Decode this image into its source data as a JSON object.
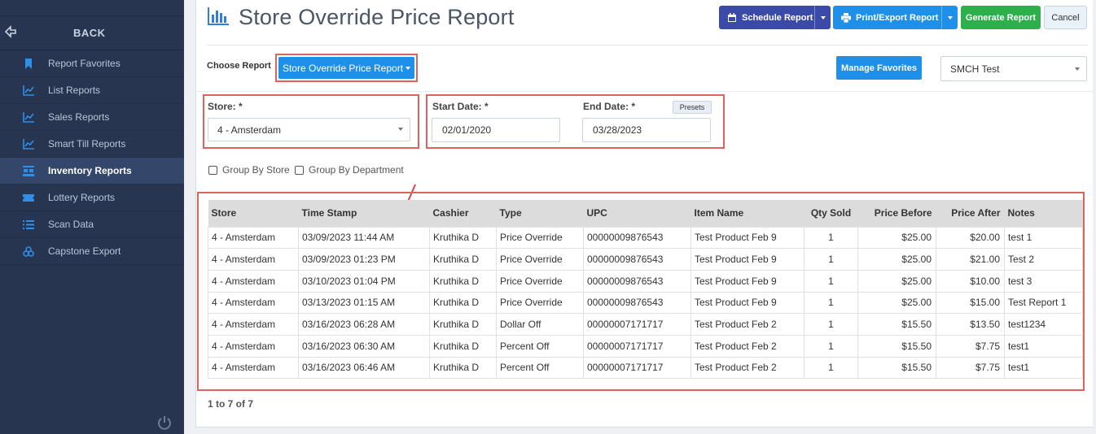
{
  "sidebar": {
    "back_label": "BACK",
    "items": [
      {
        "label": "Report Favorites",
        "icon": "bookmark-icon",
        "active": false
      },
      {
        "label": "List Reports",
        "icon": "line-chart-icon",
        "active": false
      },
      {
        "label": "Sales Reports",
        "icon": "line-chart-icon",
        "active": false
      },
      {
        "label": "Smart Till Reports",
        "icon": "line-chart-icon",
        "active": false
      },
      {
        "label": "Inventory Reports",
        "icon": "inventory-icon",
        "active": true
      },
      {
        "label": "Lottery Reports",
        "icon": "ticket-icon",
        "active": false
      },
      {
        "label": "Scan Data",
        "icon": "list-icon",
        "active": false
      },
      {
        "label": "Capstone Export",
        "icon": "boxes-icon",
        "active": false
      }
    ]
  },
  "header": {
    "title": "Store Override Price Report",
    "schedule_label": "Schedule Report",
    "print_label": "Print/Export Report",
    "generate_label": "Generate Report",
    "cancel_label": "Cancel"
  },
  "controls": {
    "choose_label": "Choose Report",
    "report_selected": "Store Override Price Report",
    "manage_label": "Manage Favorites",
    "company_selected": "SMCH Test",
    "store_label": "Store: *",
    "store_selected": "4 - Amsterdam",
    "start_label": "Start Date: *",
    "start_value": "02/01/2020",
    "end_label": "End Date: *",
    "end_value": "03/28/2023",
    "presets_label": "Presets",
    "group_store_label": "Group By Store",
    "group_dept_label": "Group By Department"
  },
  "table": {
    "columns": [
      "Store",
      "Time Stamp",
      "Cashier",
      "Type",
      "UPC",
      "Item Name",
      "Qty Sold",
      "Price Before",
      "Price After",
      "Notes"
    ],
    "rows": [
      [
        "4 - Amsterdam",
        "03/09/2023 11:44 AM",
        "Kruthika D",
        "Price Override",
        "00000009876543",
        "Test Product Feb 9",
        "1",
        "$25.00",
        "$20.00",
        "test 1"
      ],
      [
        "4 - Amsterdam",
        "03/09/2023 01:23 PM",
        "Kruthika D",
        "Price Override",
        "00000009876543",
        "Test Product Feb 9",
        "1",
        "$25.00",
        "$21.00",
        "Test 2"
      ],
      [
        "4 - Amsterdam",
        "03/10/2023 01:04 PM",
        "Kruthika D",
        "Price Override",
        "00000009876543",
        "Test Product Feb 9",
        "1",
        "$25.00",
        "$10.00",
        "test 3"
      ],
      [
        "4 - Amsterdam",
        "03/13/2023 01:15 AM",
        "Kruthika D",
        "Price Override",
        "00000009876543",
        "Test Product Feb 9",
        "1",
        "$25.00",
        "$15.00",
        "Test Report 1"
      ],
      [
        "4 - Amsterdam",
        "03/16/2023 06:28 AM",
        "Kruthika D",
        "Dollar Off",
        "00000007171717",
        "Test Product Feb 2",
        "1",
        "$15.50",
        "$13.50",
        "test1234"
      ],
      [
        "4 - Amsterdam",
        "03/16/2023 06:30 AM",
        "Kruthika D",
        "Percent Off",
        "00000007171717",
        "Test Product Feb 2",
        "1",
        "$15.50",
        "$7.75",
        "test1"
      ],
      [
        "4 - Amsterdam",
        "03/16/2023 06:46 AM",
        "Kruthika D",
        "Percent Off",
        "00000007171717",
        "Test Product Feb 2",
        "1",
        "$15.50",
        "$7.75",
        "test1"
      ]
    ],
    "pager": "1 to 7 of 7"
  },
  "colors": {
    "sidebar_bg": "#273550",
    "accent_blue": "#1e90ea",
    "schedule_blue": "#3b4aa8",
    "generate_green": "#2db04b",
    "highlight_red": "#e0625f"
  }
}
